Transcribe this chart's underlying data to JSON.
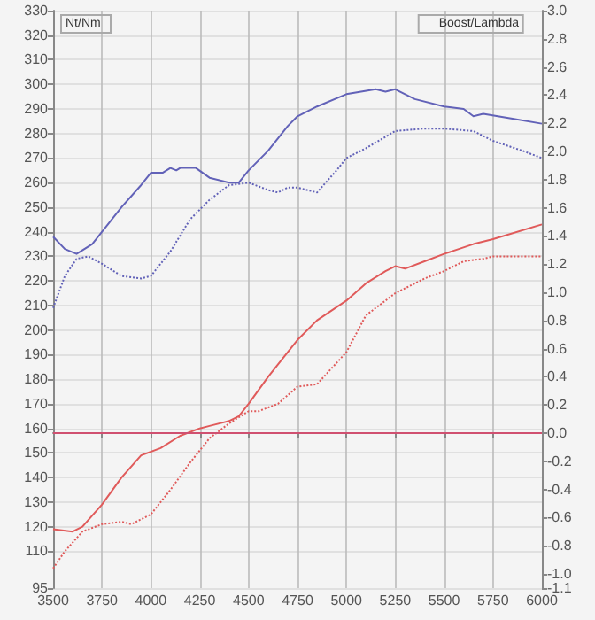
{
  "chart_data": {
    "type": "line",
    "ylabel": "Nt/Nm",
    "y2label": "Boost/Lambda",
    "xlim": [
      3500,
      6000
    ],
    "xticks": [
      3500,
      3750,
      4000,
      4250,
      4500,
      4750,
      5000,
      5250,
      5500,
      5750,
      6000
    ],
    "ylim": [
      95,
      330
    ],
    "yticks": [
      95,
      110,
      120,
      130,
      140,
      150,
      160,
      170,
      180,
      190,
      200,
      210,
      220,
      230,
      240,
      250,
      260,
      270,
      280,
      290,
      300,
      310,
      320,
      330
    ],
    "y2lim": [
      -1.1,
      3
    ],
    "y2ticks": [
      -1.1,
      {
        "value": -1,
        "label": "-1.0"
      },
      -0.8,
      -0.6,
      -0.4,
      -0.2,
      {
        "value": 0,
        "label": "0.0"
      },
      0.2,
      0.4,
      0.6,
      0.8,
      {
        "value": 1,
        "label": "1.0"
      },
      1.2,
      1.4,
      1.6,
      1.8,
      {
        "value": 2,
        "label": "2.0"
      },
      2.2,
      2.4,
      2.6,
      2.8,
      {
        "value": 3,
        "label": "3.0"
      }
    ],
    "grid": true,
    "marker": "none",
    "ref_lines": [
      {
        "axis": "y2",
        "value": 0,
        "color": "#d05070",
        "line_style": "solid"
      }
    ],
    "series": [
      {
        "color": "#6262b8",
        "line_style": "solid",
        "x": [
          3500,
          3560,
          3620,
          3700,
          3750,
          3850,
          3950,
          4000,
          4060,
          4100,
          4130,
          4150,
          4230,
          4300,
          4400,
          4450,
          4500,
          4600,
          4700,
          4750,
          4850,
          5000,
          5150,
          5200,
          5250,
          5350,
          5500,
          5600,
          5650,
          5700,
          5850,
          6000
        ],
        "values": [
          238,
          233,
          231,
          235,
          240,
          250,
          259,
          264,
          264,
          266,
          265,
          266,
          266,
          262,
          260,
          260,
          265,
          273,
          283,
          287,
          291,
          296,
          298,
          297,
          298,
          294,
          291,
          290,
          287,
          288,
          286,
          284
        ]
      },
      {
        "color": "#6262b8",
        "line_style": "dotted",
        "x": [
          3500,
          3560,
          3620,
          3680,
          3750,
          3850,
          3950,
          4000,
          4100,
          4200,
          4300,
          4400,
          4500,
          4600,
          4650,
          4700,
          4750,
          4850,
          4950,
          5000,
          5100,
          5250,
          5400,
          5500,
          5650,
          5750,
          5900,
          6000
        ],
        "values": [
          209,
          222,
          229,
          230,
          227,
          222,
          221,
          222,
          232,
          245,
          253,
          259,
          260,
          257,
          256,
          258,
          258,
          256,
          265,
          270,
          274,
          281,
          282,
          282,
          281,
          277,
          273,
          270
        ]
      },
      {
        "color": "#e05a5a",
        "line_style": "solid",
        "x": [
          3500,
          3600,
          3650,
          3750,
          3850,
          3950,
          4050,
          4150,
          4250,
          4300,
          4400,
          4450,
          4500,
          4600,
          4700,
          4750,
          4850,
          5000,
          5100,
          5200,
          5250,
          5300,
          5400,
          5500,
          5650,
          5750,
          6000
        ],
        "values": [
          119,
          118,
          120,
          129,
          140,
          149,
          152,
          157,
          160,
          161,
          163,
          165,
          170,
          181,
          191,
          196,
          204,
          212,
          219,
          224,
          226,
          225,
          228,
          231,
          235,
          237,
          243
        ]
      },
      {
        "color": "#e05a5a",
        "line_style": "dotted",
        "x": [
          3500,
          3560,
          3650,
          3750,
          3850,
          3900,
          4000,
          4100,
          4200,
          4300,
          4400,
          4500,
          4550,
          4650,
          4750,
          4850,
          5000,
          5100,
          5250,
          5400,
          5500,
          5600,
          5700,
          5750,
          5900,
          6000
        ],
        "values": [
          103,
          110,
          118,
          121,
          122,
          121,
          125,
          135,
          146,
          156,
          162,
          167,
          167,
          170,
          177,
          178,
          191,
          206,
          215,
          221,
          224,
          228,
          229,
          230,
          230,
          230
        ]
      }
    ]
  }
}
